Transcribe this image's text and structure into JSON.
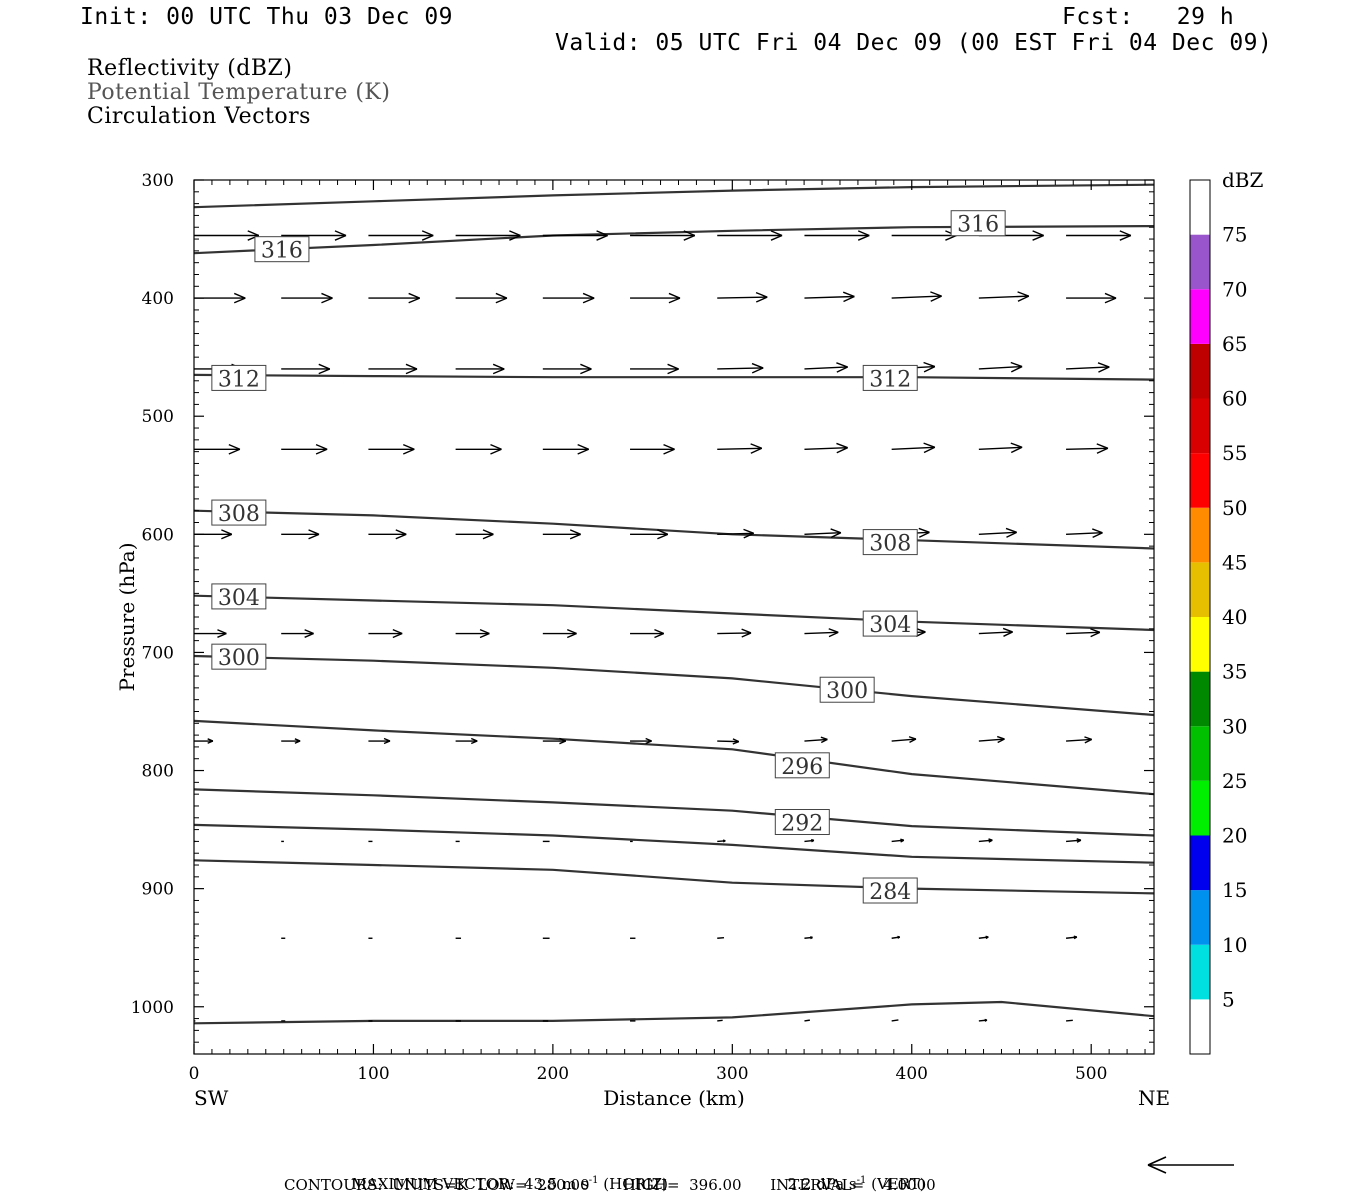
{
  "header": {
    "init": "Init: 00 UTC Thu 03 Dec 09",
    "fcst": "Fcst:   29 h",
    "valid": "Valid: 05 UTC Fri 04 Dec 09 (00 EST Fri 04 Dec 09)"
  },
  "legend_lines": {
    "line1": "Reflectivity (dBZ)",
    "line2": "Potential Temperature (K)",
    "line3": "Circulation Vectors"
  },
  "footer": {
    "max_vector": "MAXIMUM VECTOR:  43.5 m s",
    "max_vector_sup": "-1",
    "horiz": " (HORIZ)",
    "vert_value": "2.2 dPa s",
    "vert_sup": "-1",
    "vert": " (VERT)",
    "contours": "CONTOURS:  UNITS=K  LOW=  280.00       HIGH=  396.00      INTERVAL=    4.0000"
  },
  "colors": {
    "contour": "#333333",
    "arrow": "#000000",
    "frame": "#000000"
  },
  "chart_data": {
    "type": "line",
    "xlabel": "Distance (km)",
    "ylabel": "Pressure (hPa)",
    "xlim": [
      0,
      535
    ],
    "ylim": [
      300,
      1040
    ],
    "y_inverted": true,
    "x_ticks": [
      "0",
      "100",
      "200",
      "300",
      "400",
      "500"
    ],
    "y_ticks": [
      "300",
      "400",
      "500",
      "600",
      "700",
      "800",
      "900",
      "1000"
    ],
    "x_end_labels": {
      "left": "SW",
      "right": "NE"
    },
    "contour_labels": [
      {
        "text": "316",
        "x": 49,
        "p": 359
      },
      {
        "text": "316",
        "x": 437,
        "p": 337
      },
      {
        "text": "312",
        "x": 25,
        "p": 468
      },
      {
        "text": "312",
        "x": 388,
        "p": 468
      },
      {
        "text": "308",
        "x": 25,
        "p": 582
      },
      {
        "text": "308",
        "x": 388,
        "p": 607
      },
      {
        "text": "304",
        "x": 25,
        "p": 653
      },
      {
        "text": "304",
        "x": 388,
        "p": 676
      },
      {
        "text": "300",
        "x": 25,
        "p": 704
      },
      {
        "text": "300",
        "x": 364,
        "p": 732
      },
      {
        "text": "296",
        "x": 339,
        "p": 796
      },
      {
        "text": "292",
        "x": 339,
        "p": 844
      },
      {
        "text": "284",
        "x": 388,
        "p": 902
      }
    ],
    "series": [
      {
        "x": [
          0,
          100,
          200,
          300,
          400,
          535
        ],
        "p": [
          323,
          318,
          313,
          309,
          306,
          304
        ]
      },
      {
        "x": [
          0,
          100,
          200,
          300,
          400,
          535
        ],
        "p": [
          362,
          355,
          347,
          343,
          340,
          339
        ]
      },
      {
        "x": [
          0,
          100,
          200,
          300,
          400,
          535
        ],
        "p": [
          465,
          466,
          467,
          467,
          467,
          469
        ]
      },
      {
        "x": [
          0,
          100,
          200,
          300,
          400,
          535
        ],
        "p": [
          580,
          584,
          591,
          600,
          605,
          612
        ]
      },
      {
        "x": [
          0,
          100,
          200,
          300,
          400,
          535
        ],
        "p": [
          652,
          656,
          660,
          667,
          674,
          681
        ]
      },
      {
        "x": [
          0,
          100,
          200,
          300,
          400,
          535
        ],
        "p": [
          703,
          707,
          713,
          722,
          737,
          753
        ]
      },
      {
        "x": [
          0,
          100,
          200,
          300,
          400,
          535
        ],
        "p": [
          758,
          766,
          773,
          782,
          803,
          820
        ]
      },
      {
        "x": [
          0,
          100,
          200,
          300,
          400,
          535
        ],
        "p": [
          816,
          821,
          827,
          834,
          847,
          855
        ]
      },
      {
        "x": [
          0,
          100,
          200,
          300,
          400,
          535
        ],
        "p": [
          846,
          850,
          855,
          863,
          873,
          878
        ]
      },
      {
        "x": [
          0,
          100,
          200,
          300,
          400,
          535
        ],
        "p": [
          876,
          880,
          884,
          895,
          900,
          904
        ]
      },
      {
        "x": [
          0,
          100,
          200,
          300,
          400,
          450,
          535
        ],
        "p": [
          1014,
          1012,
          1012,
          1009,
          998,
          996,
          1008
        ]
      }
    ],
    "vector_rows": [
      {
        "p": 347,
        "u": [
          48,
          48,
          48,
          48,
          48,
          48,
          48,
          48,
          48,
          48,
          48
        ],
        "w": [
          0,
          0,
          0,
          0,
          0,
          0,
          0,
          0,
          0,
          0,
          0
        ]
      },
      {
        "p": 400,
        "u": [
          38,
          38,
          38,
          38,
          38,
          37,
          37,
          37,
          37,
          37,
          37
        ],
        "w": [
          0,
          0,
          0,
          0,
          0,
          0,
          0.5,
          0.8,
          1,
          1,
          0
        ]
      },
      {
        "p": 460,
        "u": [
          36,
          36,
          36,
          36,
          36,
          36,
          34,
          32,
          32,
          32,
          32
        ],
        "w": [
          0,
          0,
          0,
          0,
          0,
          0,
          0.5,
          1,
          1.2,
          1.2,
          1
        ]
      },
      {
        "p": 528,
        "u": [
          34,
          34,
          34,
          34,
          34,
          33,
          33,
          32,
          32,
          32,
          31
        ],
        "w": [
          0,
          0,
          0,
          0,
          0,
          0,
          0.5,
          0.8,
          1,
          1,
          0.5
        ]
      },
      {
        "p": 600,
        "u": [
          28,
          28,
          28,
          28,
          28,
          28,
          27,
          27,
          28,
          28,
          27
        ],
        "w": [
          0,
          0,
          0,
          0,
          0,
          0,
          0.5,
          0.8,
          1,
          1,
          0.8
        ]
      },
      {
        "p": 684,
        "u": [
          24,
          24,
          25,
          25,
          25,
          25,
          25,
          25,
          25,
          25,
          25
        ],
        "w": [
          0,
          0,
          0,
          0,
          0,
          0,
          0.3,
          0.6,
          0.8,
          0.8,
          0.6
        ]
      },
      {
        "p": 775,
        "u": [
          14,
          14,
          16,
          16,
          17,
          16,
          16,
          17,
          18,
          19,
          19
        ],
        "w": [
          0,
          0,
          0,
          0,
          0,
          0,
          -0.3,
          0.8,
          1,
          1,
          0.8
        ]
      },
      {
        "p": 860,
        "u": [
          1,
          2,
          3,
          3,
          5,
          2,
          6,
          7,
          9,
          10,
          11
        ],
        "w": [
          0,
          0,
          0,
          0,
          0,
          0,
          0.3,
          0.5,
          0.6,
          0.6,
          0.6
        ]
      },
      {
        "p": 942,
        "u": [
          1,
          3,
          3,
          4,
          5,
          4,
          5,
          6,
          6,
          7,
          8
        ],
        "w": [
          0,
          0,
          0,
          0,
          0,
          0,
          0.3,
          0.4,
          0.6,
          0.6,
          0.6
        ]
      },
      {
        "p": 1012,
        "u": [
          1,
          3,
          3,
          4,
          4,
          4,
          4,
          4,
          5,
          6,
          5
        ],
        "w": [
          0,
          0,
          0,
          0,
          0,
          0,
          0.3,
          0.4,
          0.5,
          0.4,
          0.3
        ]
      }
    ],
    "colorbar": {
      "title": "dBZ",
      "ticks": [
        "5",
        "10",
        "15",
        "20",
        "25",
        "30",
        "35",
        "40",
        "45",
        "50",
        "55",
        "60",
        "65",
        "70",
        "75"
      ],
      "colors": [
        "#ffffff",
        "#00e0e0",
        "#0090ee",
        "#0000ee",
        "#00ee00",
        "#00c000",
        "#008800",
        "#ffff00",
        "#e6c000",
        "#ff8c00",
        "#ff0000",
        "#d80000",
        "#bf0000",
        "#ff00ff",
        "#9955cc",
        "#ffffff"
      ]
    }
  }
}
